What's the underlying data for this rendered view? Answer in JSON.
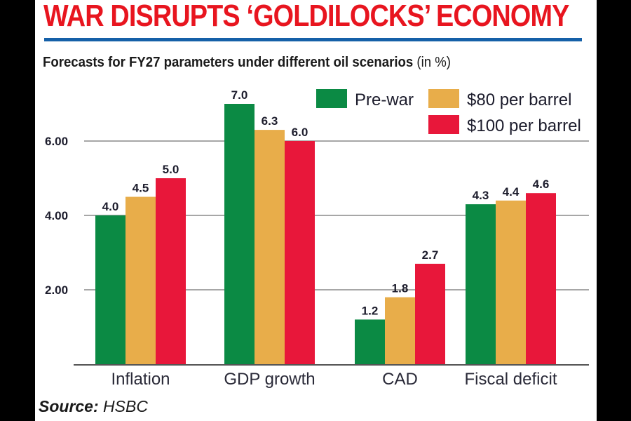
{
  "headline": "WAR DISRUPTS ‘GOLDILOCKS’ ECONOMY",
  "subtitle": "Forecasts for FY27 parameters under different oil scenarios",
  "subtitle_unit": "(in %)",
  "source_label": "Source:",
  "source_value": "HSBC",
  "colors": {
    "headline": "#e8151f",
    "rule": "#1560a8"
  },
  "chart_data": {
    "type": "bar",
    "title": "Forecasts for FY27 parameters under different oil scenarios (in %)",
    "xlabel": "",
    "ylabel": "",
    "categories": [
      "Inflation",
      "GDP growth",
      "CAD",
      "Fiscal deficit"
    ],
    "series": [
      {
        "name": "Pre-war",
        "color": "#0b8a44",
        "values": [
          4.0,
          7.0,
          1.2,
          4.3
        ]
      },
      {
        "name": "$80 per barrel",
        "color": "#e8ad4a",
        "values": [
          4.5,
          6.3,
          1.8,
          4.4
        ]
      },
      {
        "name": "$100 per barrel",
        "color": "#e8173a",
        "values": [
          5.0,
          6.0,
          2.7,
          4.6
        ]
      }
    ],
    "yticks": [
      2,
      4,
      6
    ],
    "ytick_labels": [
      "2.00",
      "4.00",
      "6.00"
    ],
    "ylim": [
      0,
      7.5
    ],
    "grid": true,
    "legend_position": "top-right",
    "data_labels": true
  }
}
